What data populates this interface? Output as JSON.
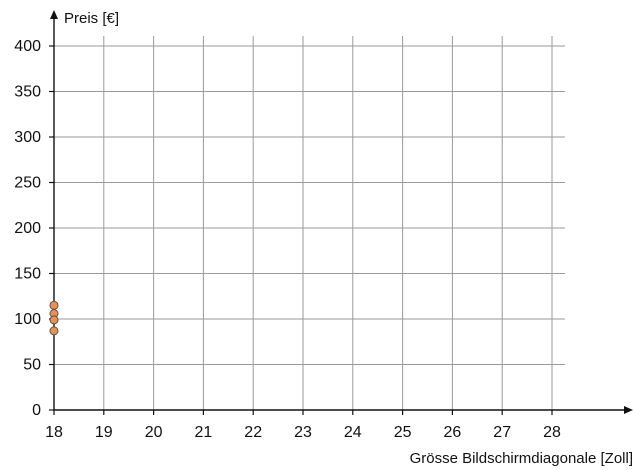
{
  "chart_data": {
    "type": "scatter",
    "title": "",
    "xlabel": "Grösse Bildschirmdiagonale [Zoll]",
    "ylabel": "Preis [€]",
    "xlim": [
      18,
      28
    ],
    "ylim": [
      0,
      400
    ],
    "x_ticks": [
      18,
      19,
      20,
      21,
      22,
      23,
      24,
      25,
      26,
      27,
      28
    ],
    "y_ticks": [
      0,
      50,
      100,
      150,
      200,
      250,
      300,
      350,
      400
    ],
    "grid": true,
    "legend": "none",
    "series": [
      {
        "points": [
          {
            "x": 18,
            "y": 115
          },
          {
            "x": 18,
            "y": 106
          },
          {
            "x": 18,
            "y": 99
          },
          {
            "x": 18,
            "y": 87
          }
        ]
      }
    ],
    "colors": {
      "grid": "#9a9a9a",
      "axis": "#111111",
      "point_fill": "#ef8f4d",
      "point_stroke": "#555555"
    }
  }
}
